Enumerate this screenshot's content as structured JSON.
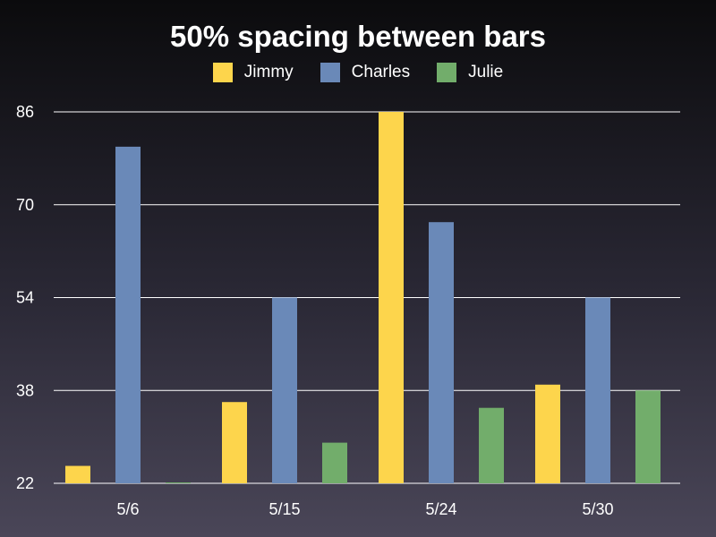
{
  "chart_data": {
    "type": "bar",
    "title": "50% spacing between bars",
    "categories": [
      "5/6",
      "5/15",
      "5/24",
      "5/30"
    ],
    "series": [
      {
        "name": "Jimmy",
        "color": "#fdd54c",
        "values": [
          25,
          36,
          86,
          39
        ]
      },
      {
        "name": "Charles",
        "color": "#6a89b8",
        "values": [
          80,
          54,
          67,
          54
        ]
      },
      {
        "name": "Julie",
        "color": "#72ad6b",
        "values": [
          22,
          29,
          35,
          38
        ]
      }
    ],
    "y_ticks": [
      "22",
      "38",
      "54",
      "70",
      "86"
    ],
    "ylim": [
      22,
      86
    ],
    "grid": true,
    "legend_position": "top-center"
  }
}
